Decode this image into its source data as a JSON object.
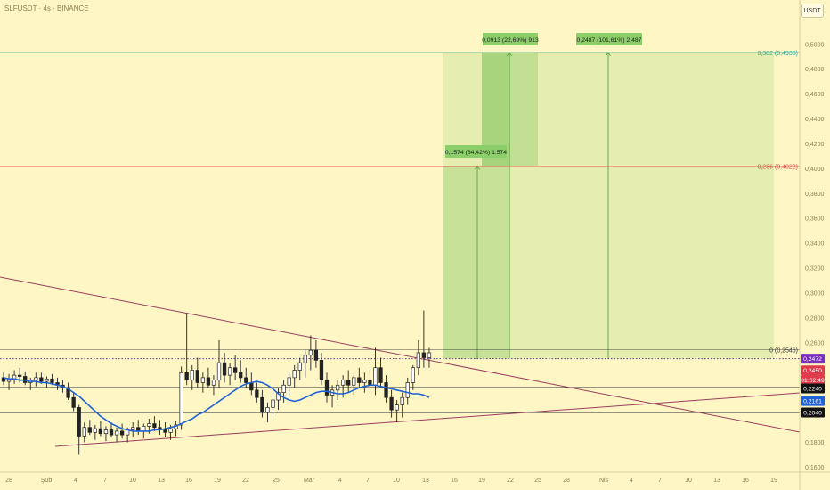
{
  "ticker": "SLFUSDT · 4s · BINANCE",
  "currency_button": "USDT",
  "colors": {
    "background": "#fff6c5",
    "up": "#ffffff",
    "down": "#222222",
    "ma": "#1f63d6",
    "trend": "#9b3f5f",
    "zone": "#8ccf6a",
    "zone_dark": "#6fbf4f"
  },
  "chart_data": {
    "type": "candlestick",
    "title": "SLFUSDT · 4s · BINANCE",
    "y_axis": {
      "ticks": [
        "0,5000",
        "0,4800",
        "0,4600",
        "0,4400",
        "0,4200",
        "0,4000",
        "0,3800",
        "0,3600",
        "0,3400",
        "0,3200",
        "0,3000",
        "0,2800",
        "0,2600",
        "0,1800",
        "0,1600"
      ],
      "tick_values": [
        0.5,
        0.48,
        0.46,
        0.44,
        0.42,
        0.4,
        0.38,
        0.36,
        0.34,
        0.32,
        0.3,
        0.28,
        0.26,
        0.18,
        0.16
      ]
    },
    "x_axis": {
      "ticks": [
        "28",
        "Şub",
        "4",
        "7",
        "10",
        "13",
        "16",
        "19",
        "22",
        "25",
        "Mar",
        "4",
        "7",
        "10",
        "13",
        "16",
        "19",
        "22",
        "25",
        "28",
        "Nis",
        "4",
        "7",
        "10",
        "13",
        "16",
        "19"
      ]
    },
    "price_labels": [
      {
        "text": "0,2472",
        "value": 0.2472,
        "color": "#7b2fbe"
      },
      {
        "text": "0,2450",
        "value": 0.245,
        "color": "#e03b4b"
      },
      {
        "text": "01:02:49",
        "value": 0.2437,
        "color": "#e03b4b"
      },
      {
        "text": "0,2240",
        "value": 0.224,
        "color": "#111111"
      },
      {
        "text": "0,2161",
        "value": 0.2161,
        "color": "#1f63d6"
      },
      {
        "text": "0,2040",
        "value": 0.204,
        "color": "#111111"
      }
    ],
    "fib_levels": [
      {
        "text": "0,382 (0,4935)",
        "value": 0.4935,
        "color": "#26a69a"
      },
      {
        "text": "0,236 (0,4022)",
        "value": 0.4022,
        "color": "#e0524b"
      },
      {
        "text": "0 (0,2546)",
        "value": 0.2546,
        "color": "#333333"
      }
    ],
    "horizontal_lines": [
      0.224,
      0.204
    ],
    "dotted_line": 0.2472,
    "measure_labels": [
      {
        "text": "0,0913 (22,69%) 913",
        "target": 0.4935
      },
      {
        "text": "0,2487 (101,61%) 2.487",
        "target": 0.4935
      },
      {
        "text": "0,1574 (64,42%) 1.574",
        "target": 0.4022
      }
    ],
    "ohlc": [
      [
        0.232,
        0.236,
        0.226,
        0.229
      ],
      [
        0.229,
        0.235,
        0.222,
        0.231
      ],
      [
        0.231,
        0.238,
        0.227,
        0.234
      ],
      [
        0.234,
        0.24,
        0.228,
        0.233
      ],
      [
        0.233,
        0.237,
        0.226,
        0.228
      ],
      [
        0.228,
        0.232,
        0.222,
        0.23
      ],
      [
        0.23,
        0.236,
        0.225,
        0.232
      ],
      [
        0.232,
        0.236,
        0.227,
        0.229
      ],
      [
        0.229,
        0.233,
        0.224,
        0.231
      ],
      [
        0.231,
        0.235,
        0.226,
        0.228
      ],
      [
        0.228,
        0.232,
        0.222,
        0.226
      ],
      [
        0.226,
        0.23,
        0.22,
        0.224
      ],
      [
        0.224,
        0.228,
        0.214,
        0.216
      ],
      [
        0.216,
        0.22,
        0.205,
        0.208
      ],
      [
        0.208,
        0.21,
        0.17,
        0.185
      ],
      [
        0.185,
        0.196,
        0.18,
        0.192
      ],
      [
        0.192,
        0.198,
        0.186,
        0.188
      ],
      [
        0.188,
        0.194,
        0.182,
        0.191
      ],
      [
        0.191,
        0.197,
        0.185,
        0.187
      ],
      [
        0.187,
        0.193,
        0.181,
        0.19
      ],
      [
        0.19,
        0.196,
        0.184,
        0.186
      ],
      [
        0.186,
        0.192,
        0.18,
        0.189
      ],
      [
        0.189,
        0.195,
        0.183,
        0.186
      ],
      [
        0.186,
        0.192,
        0.18,
        0.19
      ],
      [
        0.19,
        0.196,
        0.184,
        0.192
      ],
      [
        0.192,
        0.198,
        0.186,
        0.189
      ],
      [
        0.189,
        0.195,
        0.183,
        0.193
      ],
      [
        0.193,
        0.199,
        0.187,
        0.195
      ],
      [
        0.195,
        0.201,
        0.189,
        0.192
      ],
      [
        0.192,
        0.198,
        0.186,
        0.19
      ],
      [
        0.19,
        0.196,
        0.184,
        0.188
      ],
      [
        0.188,
        0.194,
        0.182,
        0.191
      ],
      [
        0.191,
        0.197,
        0.185,
        0.194
      ],
      [
        0.194,
        0.241,
        0.19,
        0.236
      ],
      [
        0.236,
        0.284,
        0.226,
        0.23
      ],
      [
        0.23,
        0.242,
        0.222,
        0.238
      ],
      [
        0.238,
        0.248,
        0.224,
        0.228
      ],
      [
        0.228,
        0.236,
        0.22,
        0.232
      ],
      [
        0.232,
        0.24,
        0.224,
        0.226
      ],
      [
        0.226,
        0.234,
        0.218,
        0.23
      ],
      [
        0.23,
        0.262,
        0.224,
        0.244
      ],
      [
        0.244,
        0.252,
        0.228,
        0.234
      ],
      [
        0.234,
        0.244,
        0.226,
        0.24
      ],
      [
        0.24,
        0.25,
        0.23,
        0.236
      ],
      [
        0.236,
        0.246,
        0.228,
        0.232
      ],
      [
        0.232,
        0.24,
        0.224,
        0.228
      ],
      [
        0.228,
        0.236,
        0.218,
        0.222
      ],
      [
        0.222,
        0.228,
        0.212,
        0.216
      ],
      [
        0.216,
        0.222,
        0.2,
        0.204
      ],
      [
        0.204,
        0.212,
        0.196,
        0.208
      ],
      [
        0.208,
        0.22,
        0.2,
        0.214
      ],
      [
        0.214,
        0.224,
        0.206,
        0.22
      ],
      [
        0.22,
        0.23,
        0.212,
        0.226
      ],
      [
        0.226,
        0.236,
        0.218,
        0.232
      ],
      [
        0.232,
        0.242,
        0.224,
        0.238
      ],
      [
        0.238,
        0.248,
        0.23,
        0.244
      ],
      [
        0.244,
        0.254,
        0.232,
        0.25
      ],
      [
        0.25,
        0.266,
        0.238,
        0.254
      ],
      [
        0.254,
        0.262,
        0.24,
        0.246
      ],
      [
        0.246,
        0.252,
        0.226,
        0.23
      ],
      [
        0.23,
        0.236,
        0.212,
        0.218
      ],
      [
        0.218,
        0.226,
        0.208,
        0.222
      ],
      [
        0.222,
        0.23,
        0.214,
        0.226
      ],
      [
        0.226,
        0.234,
        0.216,
        0.23
      ],
      [
        0.23,
        0.238,
        0.22,
        0.226
      ],
      [
        0.226,
        0.234,
        0.218,
        0.232
      ],
      [
        0.232,
        0.24,
        0.224,
        0.228
      ],
      [
        0.228,
        0.236,
        0.22,
        0.23
      ],
      [
        0.23,
        0.238,
        0.222,
        0.226
      ],
      [
        0.226,
        0.256,
        0.218,
        0.24
      ],
      [
        0.24,
        0.248,
        0.224,
        0.228
      ],
      [
        0.228,
        0.234,
        0.212,
        0.216
      ],
      [
        0.216,
        0.222,
        0.2,
        0.206
      ],
      [
        0.206,
        0.214,
        0.196,
        0.21
      ],
      [
        0.21,
        0.22,
        0.2,
        0.216
      ],
      [
        0.216,
        0.232,
        0.21,
        0.228
      ],
      [
        0.228,
        0.242,
        0.222,
        0.24
      ],
      [
        0.24,
        0.262,
        0.234,
        0.252
      ],
      [
        0.252,
        0.286,
        0.24,
        0.248
      ],
      [
        0.248,
        0.256,
        0.24,
        0.252
      ]
    ],
    "ma_values": [
      0.232,
      0.231,
      0.231,
      0.23,
      0.23,
      0.229,
      0.229,
      0.228,
      0.228,
      0.227,
      0.226,
      0.225,
      0.223,
      0.22,
      0.217,
      0.213,
      0.209,
      0.205,
      0.201,
      0.198,
      0.195,
      0.193,
      0.191,
      0.19,
      0.189,
      0.189,
      0.189,
      0.189,
      0.19,
      0.19,
      0.191,
      0.192,
      0.193,
      0.195,
      0.197,
      0.199,
      0.202,
      0.204,
      0.207,
      0.21,
      0.213,
      0.216,
      0.219,
      0.222,
      0.225,
      0.227,
      0.228,
      0.229,
      0.228,
      0.226,
      0.223,
      0.219,
      0.216,
      0.214,
      0.213,
      0.214,
      0.216,
      0.218,
      0.22,
      0.221,
      0.221,
      0.22,
      0.219,
      0.219,
      0.22,
      0.222,
      0.224,
      0.225,
      0.226,
      0.226,
      0.225,
      0.224,
      0.223,
      0.222,
      0.221,
      0.22,
      0.219,
      0.219,
      0.218,
      0.216
    ]
  }
}
